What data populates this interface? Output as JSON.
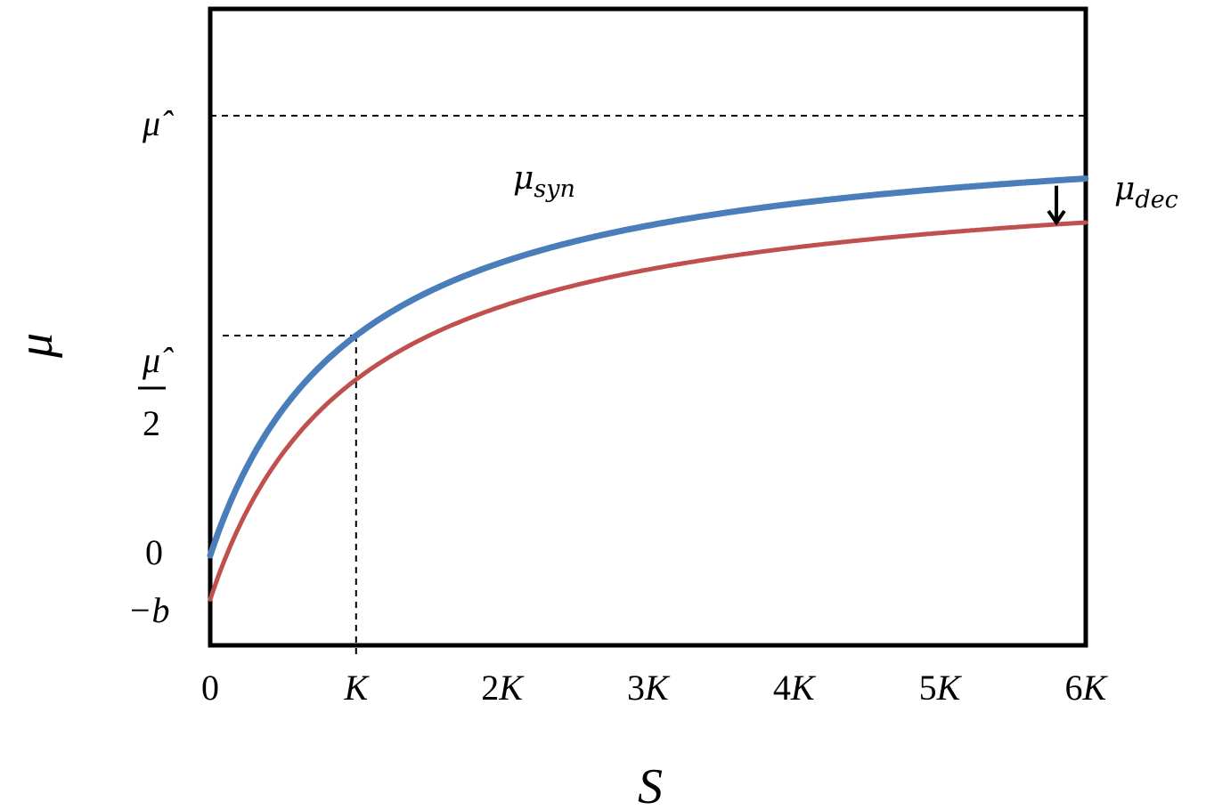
{
  "chart_data": {
    "type": "line",
    "xlabel": "S",
    "ylabel": "μ",
    "x_tick_labels": [
      "0",
      "K",
      "2K",
      "3K",
      "4K",
      "5K",
      "6K"
    ],
    "y_tick_labels": {
      "mu_hat": "μ̂",
      "half_numerator": "μ̂",
      "half_denominator": "2",
      "zero": "0",
      "minus_b": "−b"
    },
    "grid": false,
    "reference_lines": [
      {
        "kind": "horizontal",
        "label": "μ̂",
        "y": 1.0
      },
      {
        "kind": "crosshair",
        "label": "μ̂/2 at K",
        "x": 1,
        "y": 0.5
      }
    ],
    "x_unit": "K",
    "xlim": [
      0,
      6
    ],
    "params": {
      "mu_hat": 1.0,
      "b": 0.1
    },
    "series": [
      {
        "name": "μsyn",
        "name_base": "μ",
        "name_sub": "syn",
        "color": "#4a7ebb",
        "formula": "mu_hat * S / (K + S)",
        "x": [
          0,
          0.25,
          0.5,
          0.75,
          1,
          1.5,
          2,
          2.5,
          3,
          3.5,
          4,
          4.5,
          5,
          5.5,
          6
        ],
        "y": [
          0.0,
          0.2,
          0.333,
          0.429,
          0.5,
          0.6,
          0.667,
          0.714,
          0.75,
          0.778,
          0.8,
          0.818,
          0.833,
          0.846,
          0.857
        ]
      },
      {
        "name": "μdec",
        "name_base": "μ",
        "name_sub": "dec",
        "color": "#c0504d",
        "formula": "mu_hat * S / (K + S) - b",
        "x": [
          0,
          0.25,
          0.5,
          0.75,
          1,
          1.5,
          2,
          2.5,
          3,
          3.5,
          4,
          4.5,
          5,
          5.5,
          6
        ],
        "y": [
          -0.1,
          0.1,
          0.233,
          0.329,
          0.4,
          0.5,
          0.567,
          0.614,
          0.65,
          0.678,
          0.7,
          0.718,
          0.733,
          0.746,
          0.757
        ]
      }
    ],
    "annotations": [
      {
        "kind": "arrow",
        "from_series": "μsyn",
        "to_series": "μdec",
        "at_x": 5.8
      }
    ]
  }
}
